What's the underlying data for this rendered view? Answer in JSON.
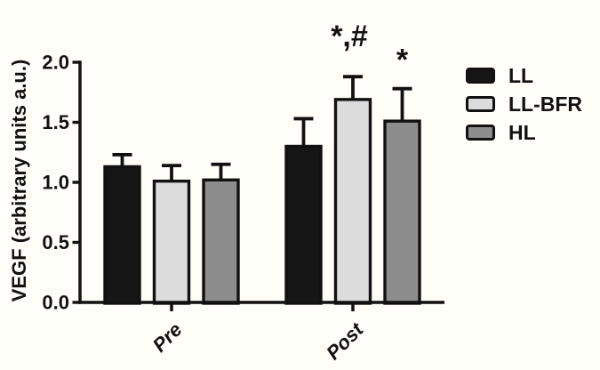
{
  "chart_data": {
    "type": "bar",
    "title": "",
    "ylabel": "VEGF (arbitrary units a.u.)",
    "xlabel": "",
    "categories": [
      "Pre",
      "Post"
    ],
    "series": [
      {
        "name": "LL",
        "color": "#161616",
        "values": [
          1.13,
          1.3
        ],
        "errors": [
          0.1,
          0.23
        ]
      },
      {
        "name": "LL-BFR",
        "color": "#dcdcdc",
        "values": [
          1.01,
          1.69
        ],
        "errors": [
          0.13,
          0.19
        ]
      },
      {
        "name": "HL",
        "color": "#8d8d8d",
        "values": [
          1.02,
          1.51
        ],
        "errors": [
          0.13,
          0.27
        ]
      }
    ],
    "ylim": [
      0.0,
      2.0
    ],
    "yticks": [
      "0.0",
      "0.5",
      "1.0",
      "1.5",
      "2.0"
    ],
    "grid": false,
    "legend_position": "right",
    "annotations": [
      {
        "text": "*,#",
        "category": "Post",
        "series": "LL-BFR"
      },
      {
        "text": "*",
        "category": "Post",
        "series": "HL"
      }
    ],
    "axis_color": "#111111",
    "background": "#fffef9"
  }
}
